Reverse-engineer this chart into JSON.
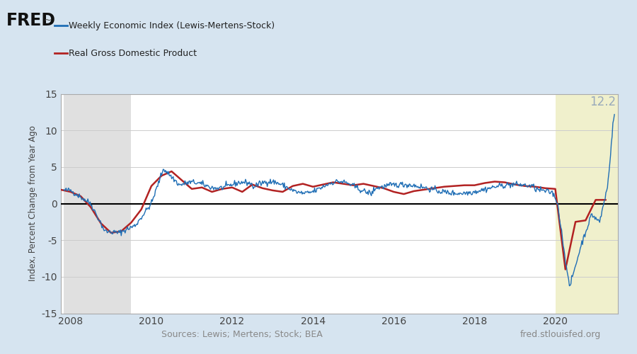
{
  "ylabel": "Index, Percent Change from Year Ago",
  "source_text": "Sources: Lewis; Mertens; Stock; BEA",
  "fred_text": "fred.stlouisfed.org",
  "line1_label": "Weekly Economic Index (Lewis-Mertens-Stock)",
  "line2_label": "Real Gross Domestic Product",
  "line1_color": "#1f6eb5",
  "line2_color": "#b22222",
  "background_outer": "#d6e4f0",
  "background_plot": "#ffffff",
  "background_recession1": "#e0e0e0",
  "background_forecast": "#f0f0cc",
  "ylim": [
    -15,
    15
  ],
  "annotation_value": "12.2",
  "annotation_color": "#99aabb",
  "recession1_start": 2007.83,
  "recession1_end": 2009.5,
  "forecast_start": 2020.0,
  "xmin": 2007.75,
  "xmax": 2021.55,
  "zero_line_color": "#000000",
  "grid_color": "#cccccc",
  "tick_color": "#444444",
  "source_color": "#888888",
  "xticks": [
    2008,
    2010,
    2012,
    2014,
    2016,
    2018,
    2020
  ],
  "yticks": [
    -15,
    -10,
    -5,
    0,
    5,
    10,
    15
  ]
}
